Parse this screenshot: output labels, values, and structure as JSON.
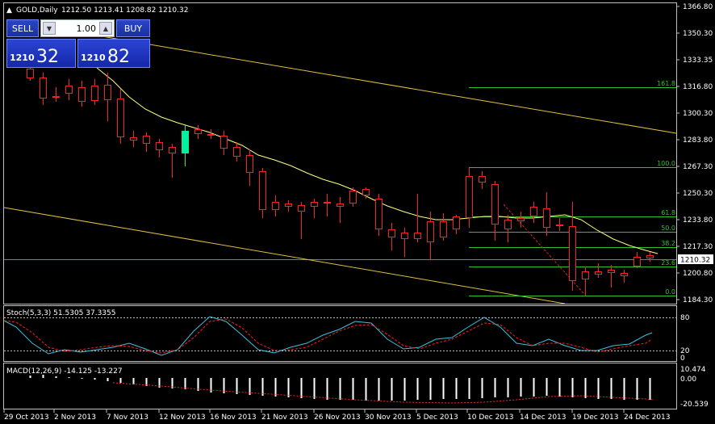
{
  "symbol_info": {
    "symbol": "GOLD,Daily",
    "ohlc": "1212.50 1213.41 1208.82 1210.32"
  },
  "trade_panel": {
    "sell_label": "SELL",
    "buy_label": "BUY",
    "lots": "1.00",
    "bid_small": "1210",
    "bid_big": "32",
    "ask_small": "1210",
    "ask_big": "82"
  },
  "price_axis": {
    "labels": [
      "1366.80",
      "1350.30",
      "1333.35",
      "1316.80",
      "1300.30",
      "1283.80",
      "1267.30",
      "1250.30",
      "1233.80",
      "1217.30",
      "1200.80",
      "1184.30"
    ],
    "current_price": "1210.32"
  },
  "fibonacci_labels": [
    "161.8",
    "100.0",
    "61.8",
    "50.0",
    "38.2",
    "23.6",
    "0.0"
  ],
  "stoch": {
    "title": "Stoch(5,3,3) 51.5305 37.3355",
    "axis_labels": [
      "80",
      "20",
      "0"
    ]
  },
  "macd": {
    "title": "MACD(12,26,9) -14.125 -13.227",
    "axis_labels": [
      "10.474",
      "0.00",
      "-20.539"
    ]
  },
  "time_axis": {
    "labels": [
      "29 Oct 2013",
      "2 Nov 2013",
      "7 Nov 2013",
      "12 Nov 2013",
      "16 Nov 2013",
      "21 Nov 2013",
      "26 Nov 2013",
      "30 Nov 2013",
      "5 Dec 2013",
      "10 Dec 2013",
      "14 Dec 2013",
      "19 Dec 2013",
      "24 Dec 2013"
    ]
  },
  "colors": {
    "bull": "#00f0a0",
    "bear": "#ff2020",
    "ma": "#ffff80",
    "channel": "#e0c040",
    "fib": "#30c030",
    "stoch_main": "#40c0e0",
    "stoch_signal": "#ff2020",
    "macd_hist": "#ffffff",
    "grid": "#c0c0c0"
  }
}
